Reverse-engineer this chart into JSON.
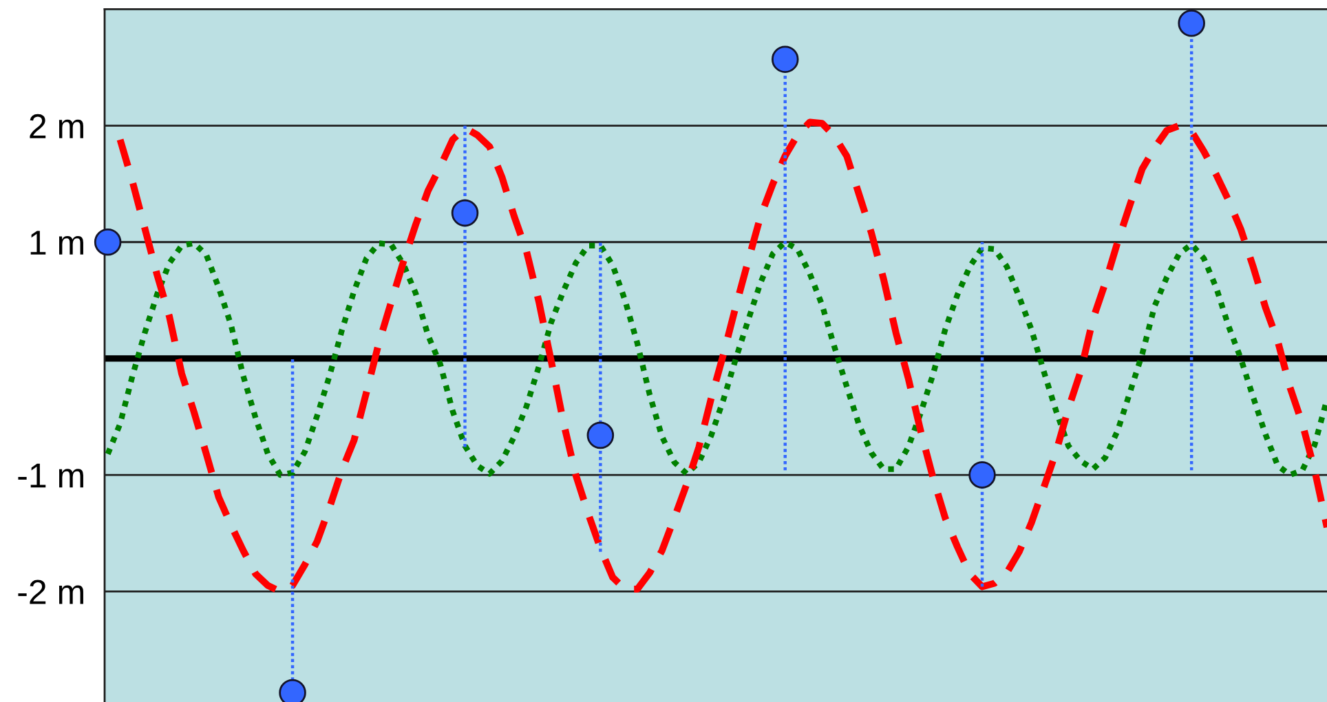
{
  "chart_data": {
    "type": "line",
    "categories": [
      null,
      null,
      null,
      null,
      null,
      null,
      null,
      null,
      null,
      null,
      null,
      null,
      null,
      null,
      null,
      null,
      null,
      null,
      null,
      null,
      null,
      null,
      null,
      null,
      null,
      null,
      null,
      null,
      null,
      null,
      null,
      null,
      null,
      null,
      null,
      null,
      null,
      null,
      null,
      null,
      null,
      null,
      null,
      null,
      null,
      null,
      null,
      null,
      null,
      null,
      null,
      null,
      null,
      null,
      null,
      null,
      null,
      null,
      null,
      null,
      null,
      null,
      null,
      null,
      null,
      null,
      null,
      null,
      null,
      null,
      null,
      null,
      null,
      null,
      null,
      null,
      null,
      null,
      null,
      null,
      null,
      null,
      null,
      null,
      null,
      null,
      null,
      null,
      null,
      null,
      null,
      null,
      null,
      null,
      null,
      null,
      null,
      null,
      null,
      null
    ],
    "series": [
      {
        "color": "#008000",
        "line_style": "dotted",
        "marker": "none",
        "values": [
          -0.82,
          -0.56,
          -0.15,
          0.22,
          0.55,
          0.82,
          0.97,
          0.99,
          0.89,
          0.61,
          0.29,
          -0.15,
          -0.51,
          -0.82,
          -1.0,
          -0.98,
          -0.8,
          -0.49,
          -0.15,
          0.24,
          0.58,
          0.86,
          0.99,
          0.98,
          0.81,
          0.56,
          0.2,
          -0.05,
          -0.45,
          -0.75,
          -0.92,
          -0.99,
          -0.88,
          -0.67,
          -0.41,
          -0.07,
          0.31,
          0.58,
          0.82,
          0.97,
          0.97,
          0.8,
          0.5,
          0.13,
          -0.31,
          -0.67,
          -0.89,
          -0.99,
          -0.89,
          -0.66,
          -0.35,
          0.0,
          0.33,
          0.65,
          0.9,
          1.0,
          0.94,
          0.73,
          0.46,
          0.1,
          -0.24,
          -0.57,
          -0.81,
          -0.95,
          -0.95,
          -0.76,
          -0.47,
          -0.14,
          0.25,
          0.55,
          0.79,
          0.95,
          0.94,
          0.79,
          0.53,
          0.25,
          -0.11,
          -0.45,
          -0.75,
          -0.88,
          -0.95,
          -0.85,
          -0.62,
          -0.29,
          0.04,
          0.45,
          0.7,
          0.9,
          0.98,
          0.86,
          0.61,
          0.28,
          0.0,
          -0.33,
          -0.65,
          -0.92,
          -1.0,
          -0.96,
          -0.74,
          -0.35
        ]
      },
      {
        "color": "#ff0000",
        "line_style": "dashed",
        "marker": "none",
        "values": [
          null,
          1.88,
          1.52,
          1.12,
          0.72,
          0.36,
          -0.13,
          -0.46,
          -0.82,
          -1.19,
          -1.43,
          -1.65,
          -1.85,
          -1.95,
          -2.0,
          -1.95,
          -1.77,
          -1.57,
          -1.28,
          -0.96,
          -0.7,
          -0.29,
          0.13,
          0.48,
          0.83,
          1.15,
          1.44,
          1.65,
          1.88,
          1.98,
          1.92,
          1.82,
          1.56,
          1.22,
          0.92,
          0.49,
          -0.02,
          -0.55,
          -1.0,
          -1.33,
          -1.63,
          -1.88,
          -1.98,
          -1.98,
          -1.84,
          -1.65,
          -1.37,
          -1.08,
          -0.76,
          -0.34,
          0.04,
          0.45,
          0.84,
          1.22,
          1.5,
          1.74,
          1.92,
          2.03,
          2.02,
          1.91,
          1.74,
          1.41,
          1.08,
          0.68,
          0.22,
          -0.17,
          -0.62,
          -1.02,
          -1.37,
          -1.62,
          -1.85,
          -1.96,
          -1.93,
          -1.84,
          -1.66,
          -1.41,
          -1.11,
          -0.8,
          -0.43,
          -0.11,
          0.34,
          0.65,
          1.0,
          1.32,
          1.63,
          1.81,
          1.96,
          2.0,
          1.95,
          1.78,
          1.58,
          1.36,
          1.11,
          0.79,
          0.44,
          0.15,
          -0.25,
          -0.56,
          -0.96,
          -1.45
        ]
      },
      {
        "type": "scatter",
        "color": "#3366ff",
        "marker": "circle",
        "line_style": "dotted",
        "values": [
          1.0,
          null,
          null,
          null,
          null,
          null,
          null,
          null,
          null,
          null,
          null,
          null,
          null,
          null,
          null,
          -2.87,
          null,
          null,
          null,
          null,
          null,
          null,
          null,
          null,
          null,
          null,
          null,
          null,
          null,
          1.25,
          null,
          null,
          null,
          null,
          null,
          null,
          null,
          null,
          null,
          null,
          -0.66,
          null,
          null,
          null,
          null,
          null,
          null,
          null,
          null,
          null,
          null,
          null,
          null,
          null,
          null,
          2.57,
          null,
          null,
          null,
          null,
          null,
          null,
          null,
          null,
          null,
          null,
          null,
          null,
          null,
          null,
          null,
          -1.0,
          null,
          null,
          null,
          null,
          null,
          null,
          null,
          null,
          null,
          null,
          null,
          null,
          null,
          null,
          null,
          null,
          2.88,
          null,
          null,
          null,
          null,
          null,
          null,
          null,
          null,
          null,
          null,
          null
        ],
        "errors": [
          null,
          null,
          null,
          null,
          null,
          null,
          null,
          null,
          null,
          null,
          null,
          null,
          null,
          null,
          null,
          [
            -2.87,
            0
          ],
          null,
          null,
          null,
          null,
          null,
          null,
          null,
          null,
          null,
          null,
          null,
          null,
          null,
          [
            -0.76,
            2
          ],
          null,
          null,
          null,
          null,
          null,
          null,
          null,
          null,
          null,
          null,
          [
            -1.66,
            1
          ],
          null,
          null,
          null,
          null,
          null,
          null,
          null,
          null,
          null,
          null,
          null,
          null,
          null,
          null,
          [
            -0.96,
            2.57
          ],
          null,
          null,
          null,
          null,
          null,
          null,
          null,
          null,
          null,
          null,
          null,
          null,
          null,
          null,
          null,
          [
            -1.96,
            1
          ],
          null,
          null,
          null,
          null,
          null,
          null,
          null,
          null,
          null,
          null,
          null,
          null,
          null,
          null,
          null,
          null,
          [
            -0.96,
            2.88
          ],
          null,
          null,
          null,
          null,
          null,
          null,
          null,
          null,
          null,
          null,
          null
        ]
      }
    ],
    "ylim": [
      -2.95,
      3
    ],
    "yticks": [
      {
        "value": 2,
        "label": "2 m"
      },
      {
        "value": 1,
        "label": "1 m"
      },
      {
        "value": -1,
        "label": "-1 m"
      },
      {
        "value": -2,
        "label": "-2 m"
      }
    ],
    "grid": "y",
    "ref_lines": [
      {
        "axis": "y",
        "value": 0,
        "color": "#000000"
      }
    ],
    "tick_labels": "y"
  }
}
